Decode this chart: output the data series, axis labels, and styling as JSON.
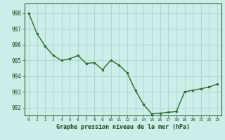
{
  "x": [
    0,
    1,
    2,
    3,
    4,
    5,
    6,
    7,
    8,
    9,
    10,
    11,
    12,
    13,
    14,
    15,
    16,
    17,
    18,
    19,
    20,
    21,
    22,
    23
  ],
  "y": [
    998.0,
    996.7,
    995.9,
    995.3,
    995.0,
    995.1,
    995.3,
    994.8,
    994.85,
    994.4,
    995.0,
    994.7,
    994.2,
    993.1,
    992.2,
    991.6,
    991.65,
    991.7,
    991.75,
    993.0,
    993.1,
    993.2,
    993.3,
    993.5
  ],
  "line_color": "#2d6a2d",
  "marker_color": "#2d6a2d",
  "bg_color": "#cceee8",
  "grid_color": "#aad4cc",
  "xlabel": "Graphe pression niveau de la mer (hPa)",
  "xlabel_color": "#1a4a1a",
  "tick_color": "#1a4a1a",
  "ylim": [
    991.5,
    998.6
  ],
  "yticks": [
    992,
    993,
    994,
    995,
    996,
    997,
    998
  ],
  "xticks": [
    0,
    1,
    2,
    3,
    4,
    5,
    6,
    7,
    8,
    9,
    10,
    11,
    12,
    13,
    14,
    15,
    16,
    17,
    18,
    19,
    20,
    21,
    22,
    23
  ]
}
